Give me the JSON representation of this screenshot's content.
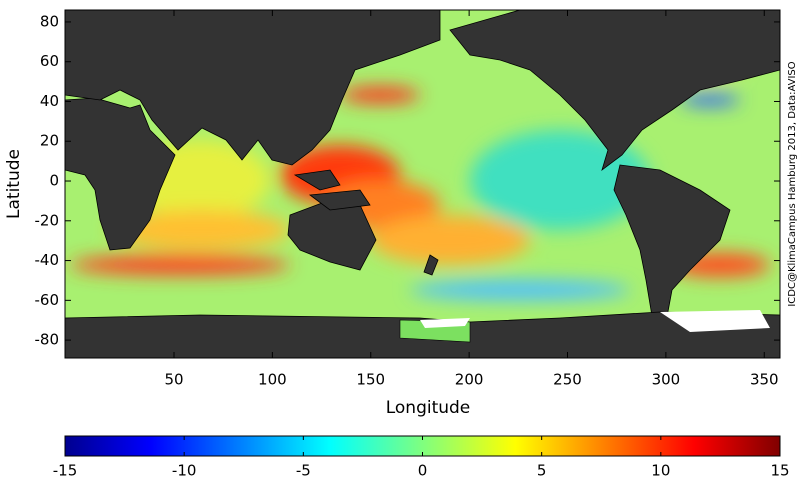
{
  "chart_data": {
    "type": "map",
    "xlabel": "Longitude",
    "ylabel": "Latitude",
    "xlim": [
      -5.4,
      358
    ],
    "xticks": [
      50,
      100,
      150,
      200,
      250,
      300,
      350
    ],
    "ylim": [
      -89,
      86
    ],
    "yticks": [
      -80,
      -60,
      -40,
      -20,
      0,
      20,
      40,
      60,
      80
    ],
    "colorbar": {
      "lim": [
        -15,
        15
      ],
      "ticks": [
        -15,
        -10,
        -5,
        0,
        5,
        10,
        15
      ]
    },
    "credit": "ICDC@KlimaCampus Hamburg 2013, Data:AVISO"
  }
}
